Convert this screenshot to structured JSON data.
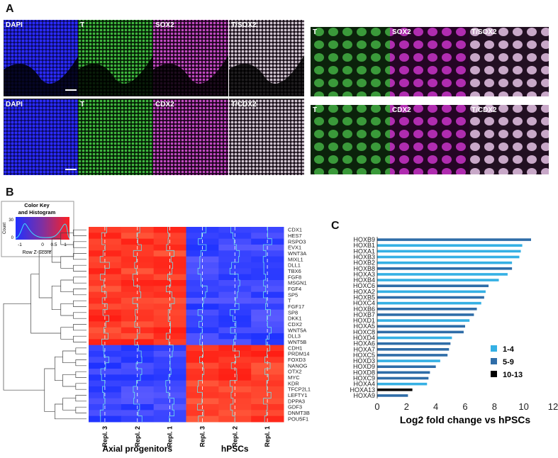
{
  "panel_a": {
    "label": "A",
    "top_left": [
      "DAPI",
      "T",
      "SOX2",
      "T/SOX2"
    ],
    "bottom_left": [
      "DAPI",
      "T",
      "CDX2",
      "T/CDX2"
    ],
    "top_right": [
      "T",
      "SOX2",
      "T/SOX2"
    ],
    "bottom_right": [
      "T",
      "CDX2",
      "T/CDX2"
    ]
  },
  "panel_b": {
    "label": "B",
    "color_key": {
      "title_lines": [
        "Color Key",
        "and Histogram"
      ],
      "y_label": "Count",
      "y_ticks": [
        "0",
        "30"
      ],
      "x_label": "Row Z-Score",
      "x_ticks": [
        "-1",
        "0",
        "0.5",
        "1"
      ]
    },
    "genes": [
      "CDX1",
      "HES7",
      "RSPO3",
      "EVX1",
      "WNT3A",
      "MIXL1",
      "DLL1",
      "TBX6",
      "FGF8",
      "MSGN1",
      "FGF4",
      "SP5",
      "T",
      "FGF17",
      "SP8",
      "DKK1",
      "CDX2",
      "WNT5A",
      "DLL3",
      "WNT5B",
      "CDH1",
      "PRDM14",
      "FOXD3",
      "NANOG",
      "OTX2",
      "MYC",
      "KDR",
      "TFCP2L1",
      "LEFTY1",
      "DPPA3",
      "GDF3",
      "DNMT3B",
      "POU5F1"
    ],
    "replicates": [
      "Repl. 3",
      "Repl. 2",
      "Repl. 1",
      "Repl. 3",
      "Repl. 2",
      "Repl. 1"
    ],
    "groups": [
      "Axial progenitors",
      "hPSCs"
    ]
  },
  "chart_data": {
    "type": "hbar",
    "label": "C",
    "xlabel": "Log2 fold change vs hPSCs",
    "categories": [
      "HOXB9",
      "HOXB1",
      "HOXA1",
      "HOXB3",
      "HOXB2",
      "HOXB8",
      "HOXA3",
      "HOXB4",
      "HOXC6",
      "HOXA2",
      "HOXB5",
      "HOXC4",
      "HOXB6",
      "HOXB7",
      "HOXD1",
      "HOXA5",
      "HOXC8",
      "HOXD4",
      "HOXA6",
      "HOXA7",
      "HOXC5",
      "HOXD3",
      "HOXD9",
      "HOXD8",
      "HOXC9",
      "HOXA4",
      "HOXA13",
      "HOXA9"
    ],
    "series": [
      {
        "name": "1-4",
        "color": "#35b0e4",
        "values": [
          null,
          9.9,
          9.8,
          9.7,
          9.2,
          null,
          8.9,
          8.3,
          null,
          7.4,
          null,
          7.1,
          null,
          null,
          6.3,
          null,
          null,
          5.1,
          null,
          null,
          null,
          4.3,
          null,
          null,
          null,
          3.4,
          null,
          null
        ]
      },
      {
        "name": "5-9",
        "color": "#2f6da8",
        "values": [
          10.5,
          null,
          null,
          null,
          null,
          9.2,
          null,
          null,
          7.6,
          null,
          7.3,
          null,
          6.8,
          6.6,
          null,
          6.0,
          5.9,
          null,
          5.0,
          4.9,
          4.8,
          null,
          4.0,
          3.6,
          3.5,
          null,
          null,
          2.1
        ]
      },
      {
        "name": "10-13",
        "color": "#000000",
        "values": [
          null,
          null,
          null,
          null,
          null,
          null,
          null,
          null,
          null,
          null,
          null,
          null,
          null,
          null,
          null,
          null,
          null,
          null,
          null,
          null,
          null,
          null,
          null,
          null,
          null,
          null,
          2.4,
          null
        ]
      }
    ],
    "xlim": [
      0,
      12
    ],
    "xticks": [
      0,
      2,
      4,
      6,
      8,
      10,
      12
    ]
  }
}
